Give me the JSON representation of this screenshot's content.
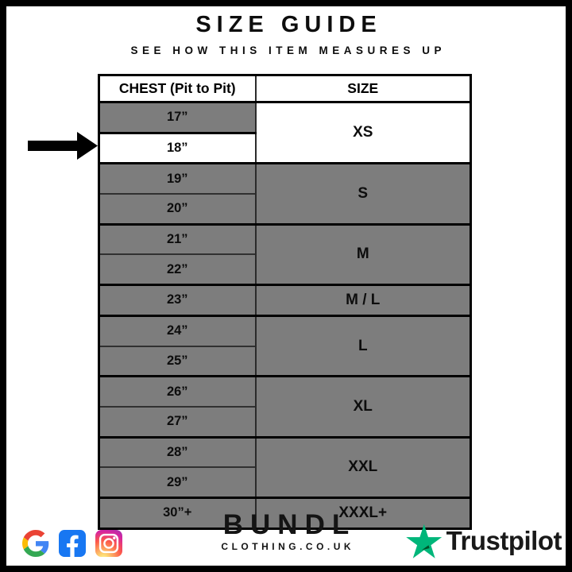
{
  "page": {
    "title": "SIZE GUIDE",
    "subtitle": "SEE HOW THIS ITEM MEASURES UP"
  },
  "chart_data": {
    "type": "table",
    "title": "SIZE GUIDE",
    "subtitle": "SEE HOW THIS ITEM MEASURES UP",
    "columns": [
      "CHEST (Pit to Pit)",
      "SIZE"
    ],
    "rows": [
      [
        "17”",
        "XS"
      ],
      [
        "18”",
        "XS"
      ],
      [
        "19”",
        "S"
      ],
      [
        "20”",
        "S"
      ],
      [
        "21”",
        "M"
      ],
      [
        "22”",
        "M"
      ],
      [
        "23”",
        "M / L"
      ],
      [
        "24”",
        "L"
      ],
      [
        "25”",
        "L"
      ],
      [
        "26”",
        "XL"
      ],
      [
        "27”",
        "XL"
      ],
      [
        "28”",
        "XXL"
      ],
      [
        "29”",
        "XXL"
      ],
      [
        "30”+",
        "XXXL+"
      ]
    ],
    "highlighted_row": "18”",
    "layout_hints": "size column merges rows per size group; highlighted measurement row is white, others gray; black arrow at left points to highlighted row"
  },
  "table": {
    "columns": [
      "CHEST (Pit to Pit)",
      "SIZE"
    ],
    "highlighted_chest": "18”",
    "groups": [
      {
        "size": "XS",
        "chest": [
          "17”",
          "18”"
        ]
      },
      {
        "size": "S",
        "chest": [
          "19”",
          "20”"
        ]
      },
      {
        "size": "M",
        "chest": [
          "21”",
          "22”"
        ]
      },
      {
        "size": "M / L",
        "chest": [
          "23”"
        ]
      },
      {
        "size": "L",
        "chest": [
          "24”",
          "25”"
        ]
      },
      {
        "size": "XL",
        "chest": [
          "26”",
          "27”"
        ]
      },
      {
        "size": "XXL",
        "chest": [
          "28”",
          "29”"
        ]
      },
      {
        "size": "XXXL+",
        "chest": [
          "30”+"
        ]
      }
    ]
  },
  "footer": {
    "brand_name": "BUNDL",
    "brand_domain": "CLOTHING.CO.UK",
    "social_icons": [
      "google-icon",
      "facebook-icon",
      "instagram-icon"
    ],
    "trustpilot_label": "Trustpilot"
  },
  "colors": {
    "row_gray": "#7D7D7D",
    "highlight_white": "#FFFFFF",
    "border_black": "#000000",
    "facebook_blue": "#1877F2",
    "trustpilot_green": "#00B67A",
    "trustpilot_dark_green": "#005128"
  }
}
